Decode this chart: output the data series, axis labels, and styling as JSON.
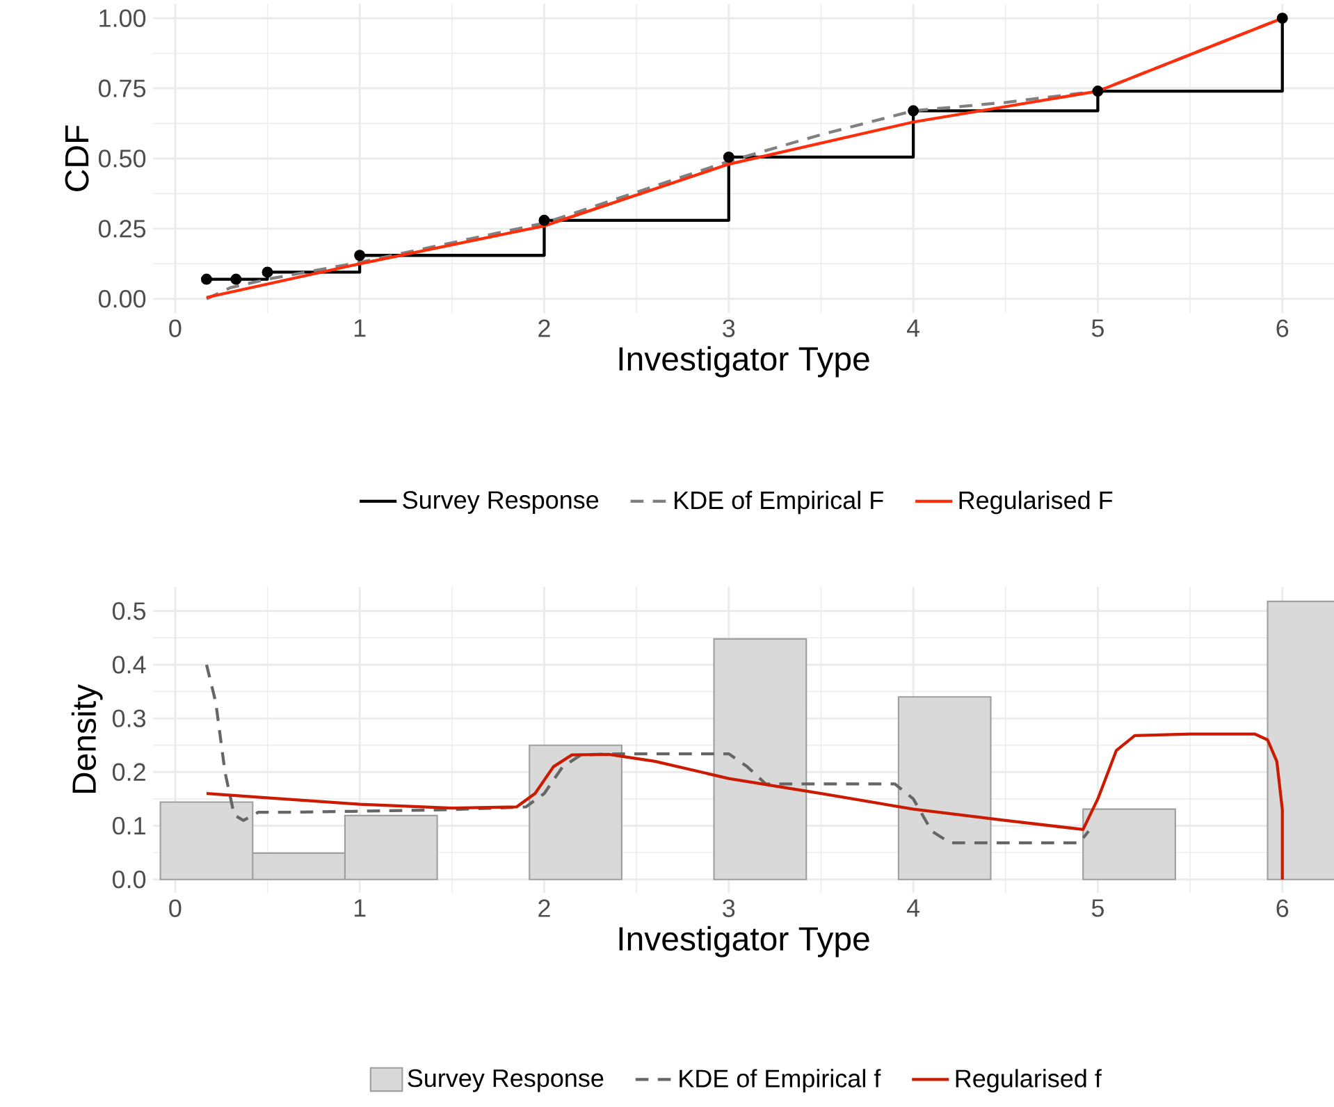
{
  "chart_data": [
    {
      "type": "line",
      "xlabel": "Investigator Type",
      "ylabel": "CDF",
      "xlim": [
        -0.12,
        6.28
      ],
      "ylim": [
        -0.05,
        1.05
      ],
      "xticks": [
        0,
        1,
        2,
        3,
        4,
        5,
        6
      ],
      "yticks": [
        {
          "value": 0,
          "label": "0.00"
        },
        {
          "value": 0.25,
          "label": "0.25"
        },
        {
          "value": 0.5,
          "label": "0.50"
        },
        {
          "value": 0.75,
          "label": "0.75"
        },
        {
          "value": 1,
          "label": "1.00"
        }
      ],
      "grid": true,
      "legend": "bottom",
      "series": [
        {
          "name": "Survey Response",
          "type": "step",
          "marker": "circle",
          "color": "#000000",
          "x": [
            0.17,
            0.33,
            0.5,
            1,
            2,
            3,
            4,
            5,
            6
          ],
          "values": [
            0.07,
            0.07,
            0.095,
            0.155,
            0.28,
            0.505,
            0.67,
            0.74,
            1.0
          ]
        },
        {
          "name": "KDE of Empirical F",
          "line_style": "dashed",
          "color": "#808080",
          "x": [
            0.17,
            0.3,
            0.5,
            1,
            2,
            3,
            3.5,
            4,
            4.5,
            5,
            6
          ],
          "values": [
            0.0,
            0.04,
            0.07,
            0.13,
            0.27,
            0.49,
            0.585,
            0.67,
            0.7,
            0.74,
            1.0
          ]
        },
        {
          "name": "Regularised F",
          "color": "#ff2d0a",
          "x": [
            0.17,
            1,
            2,
            3,
            4,
            5,
            6
          ],
          "values": [
            0.005,
            0.125,
            0.26,
            0.48,
            0.63,
            0.74,
            1.0
          ]
        }
      ]
    },
    {
      "type": "line",
      "xlabel": "Investigator Type",
      "ylabel": "Density",
      "xlim": [
        -0.12,
        6.28
      ],
      "ylim": [
        -0.025,
        0.545
      ],
      "xticks": [
        0,
        1,
        2,
        3,
        4,
        5,
        6
      ],
      "yticks": [
        {
          "value": 0,
          "label": "0.0"
        },
        {
          "value": 0.1,
          "label": "0.1"
        },
        {
          "value": 0.2,
          "label": "0.2"
        },
        {
          "value": 0.3,
          "label": "0.3"
        },
        {
          "value": 0.4,
          "label": "0.4"
        },
        {
          "value": 0.5,
          "label": "0.5"
        }
      ],
      "grid": true,
      "legend": "bottom",
      "series": [
        {
          "name": "Survey Response",
          "type": "bar",
          "color": "#d9d9d9",
          "x": [
            0.17,
            0.67,
            1.17,
            2.17,
            3.17,
            4.17,
            5.17,
            6.17
          ],
          "values": [
            0.144,
            0.049,
            0.119,
            0.25,
            0.448,
            0.34,
            0.131,
            0.518
          ]
        },
        {
          "name": "KDE of Empirical f",
          "line_style": "dashed",
          "color": "#666666",
          "x": [
            0.17,
            0.22,
            0.27,
            0.32,
            0.37,
            0.45,
            0.6,
            1,
            1.5,
            1.9,
            2.0,
            2.1,
            2.2,
            2.4,
            3.0,
            3.1,
            3.2,
            3.9,
            4.0,
            4.1,
            4.2,
            4.9,
            4.95
          ],
          "values": [
            0.4,
            0.33,
            0.2,
            0.12,
            0.11,
            0.125,
            0.125,
            0.127,
            0.13,
            0.135,
            0.16,
            0.21,
            0.232,
            0.234,
            0.234,
            0.21,
            0.178,
            0.178,
            0.15,
            0.09,
            0.068,
            0.068,
            0.09
          ]
        },
        {
          "name": "Regularised f",
          "color": "#cc1a00",
          "x": [
            0.17,
            0.5,
            1,
            1.5,
            1.85,
            1.95,
            2.05,
            2.15,
            2.35,
            2.6,
            3,
            3.5,
            4,
            4.5,
            4.92,
            5.0,
            5.1,
            5.2,
            5.5,
            5.85,
            5.92,
            5.97,
            6.0,
            6.0
          ],
          "values": [
            0.16,
            0.152,
            0.14,
            0.133,
            0.135,
            0.16,
            0.21,
            0.232,
            0.233,
            0.22,
            0.188,
            0.16,
            0.131,
            0.11,
            0.093,
            0.15,
            0.24,
            0.268,
            0.271,
            0.271,
            0.26,
            0.22,
            0.13,
            0.0
          ]
        }
      ]
    }
  ]
}
